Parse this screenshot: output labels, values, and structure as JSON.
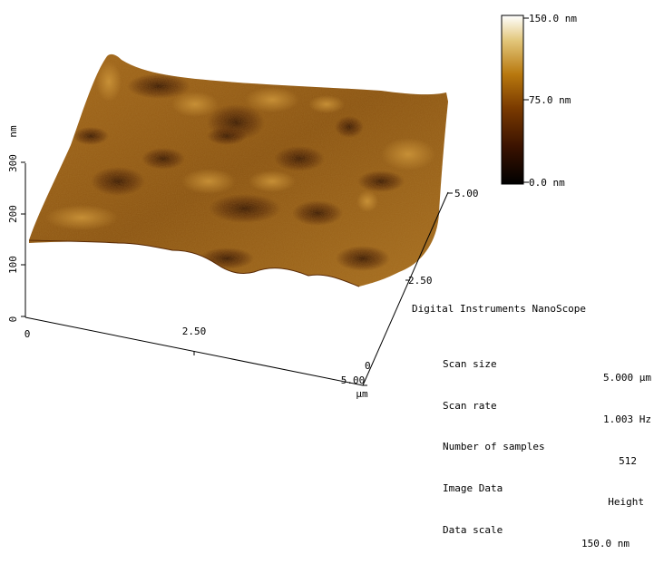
{
  "colorbar": {
    "max_label": "150.0 nm",
    "mid_label": "75.0 nm",
    "min_label": "0.0 nm",
    "gradient": [
      "#000000",
      "#3a1200",
      "#7a3a00",
      "#b8780e",
      "#e2c67a",
      "#ffffff"
    ]
  },
  "z_axis": {
    "unit": "nm",
    "ticks": [
      "0",
      "100",
      "200",
      "300"
    ]
  },
  "x_axis": {
    "ticks": [
      "0",
      "2.50",
      "5.00"
    ],
    "unit": "µm"
  },
  "y_axis": {
    "ticks": [
      "0",
      "2.50",
      "5.00"
    ]
  },
  "info": {
    "title": "Digital Instruments NanoScope",
    "rows": [
      {
        "key": "Scan size",
        "value": "5.000 µm"
      },
      {
        "key": "Scan rate",
        "value": "1.003 Hz"
      },
      {
        "key": "Number of samples",
        "value": "512"
      },
      {
        "key": "Image Data",
        "value": "Height"
      },
      {
        "key": "Data scale",
        "value": "150.0 nm"
      }
    ]
  },
  "surface": {
    "base_color": "#8a5210",
    "highlight_color": "#c08a2a",
    "shadow_color": "#3a1400"
  }
}
